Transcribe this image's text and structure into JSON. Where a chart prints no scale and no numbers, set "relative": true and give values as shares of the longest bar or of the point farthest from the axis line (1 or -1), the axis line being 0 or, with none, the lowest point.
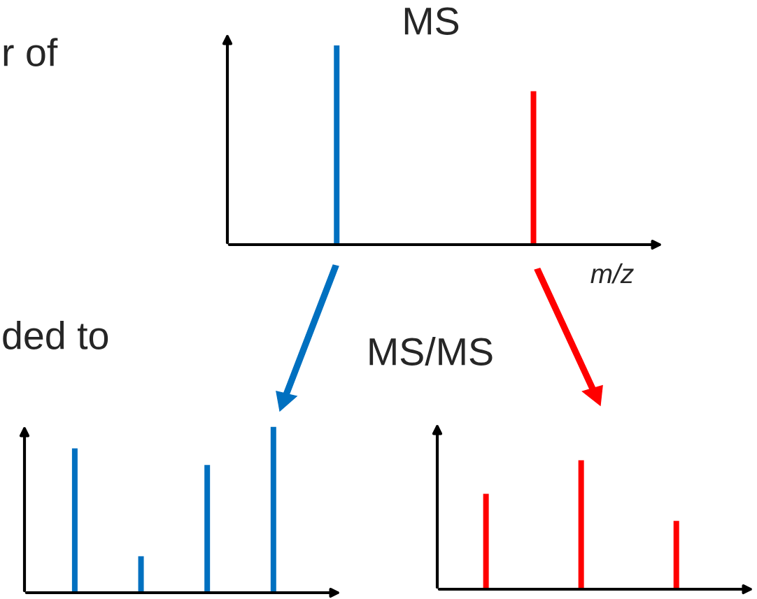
{
  "chart_data": [
    {
      "type": "bar",
      "title": "MS",
      "xlabel": "m/z",
      "relative": true,
      "categories": [
        null,
        null
      ],
      "colors": [
        "#0070c0",
        "#ff0000"
      ],
      "values": [
        1,
        0.77
      ],
      "annotations": [
        "r of",
        "ded to"
      ]
    },
    {
      "type": "bar",
      "relative": true,
      "categories": [
        null,
        null,
        null,
        null
      ],
      "series": [
        {
          "color": "#0070c0",
          "values": [
            0.87,
            0.22,
            0.77,
            1
          ]
        }
      ],
      "annotations": [
        "MS/MS"
      ]
    },
    {
      "type": "bar",
      "relative": true,
      "categories": [
        null,
        null,
        null
      ],
      "series": [
        {
          "color": "#ff0000",
          "values": [
            0.74,
            1,
            0.53
          ]
        }
      ]
    }
  ]
}
